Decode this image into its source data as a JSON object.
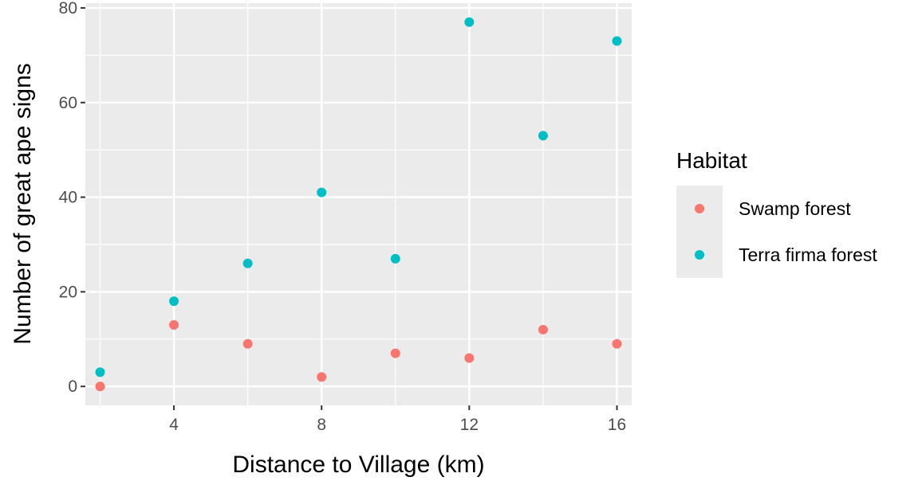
{
  "chart_data": {
    "type": "scatter",
    "title": "",
    "xlabel": "Distance to Village (km)",
    "ylabel": "Number of great ape signs",
    "xlim": [
      1.6,
      16.4
    ],
    "ylim": [
      -4,
      81
    ],
    "x_ticks": [
      4,
      8,
      12,
      16
    ],
    "y_ticks": [
      0,
      20,
      40,
      60,
      80
    ],
    "x_tick_labels": [
      "4",
      "8",
      "12",
      "16"
    ],
    "y_tick_labels": [
      "0",
      "20",
      "40",
      "60",
      "80"
    ],
    "grid": true,
    "legend": {
      "title": "Habitat",
      "position": "right"
    },
    "series": [
      {
        "name": "Swamp forest",
        "color": "#F8766D",
        "points": [
          {
            "x": 2,
            "y": 0
          },
          {
            "x": 4,
            "y": 13
          },
          {
            "x": 6,
            "y": 9
          },
          {
            "x": 8,
            "y": 2
          },
          {
            "x": 10,
            "y": 7
          },
          {
            "x": 12,
            "y": 6
          },
          {
            "x": 14,
            "y": 12
          },
          {
            "x": 16,
            "y": 9
          }
        ]
      },
      {
        "name": "Terra firma forest",
        "color": "#00BFC4",
        "points": [
          {
            "x": 2,
            "y": 3
          },
          {
            "x": 4,
            "y": 18
          },
          {
            "x": 6,
            "y": 26
          },
          {
            "x": 8,
            "y": 41
          },
          {
            "x": 10,
            "y": 27
          },
          {
            "x": 12,
            "y": 77
          },
          {
            "x": 14,
            "y": 53
          },
          {
            "x": 16,
            "y": 73
          }
        ]
      }
    ]
  }
}
